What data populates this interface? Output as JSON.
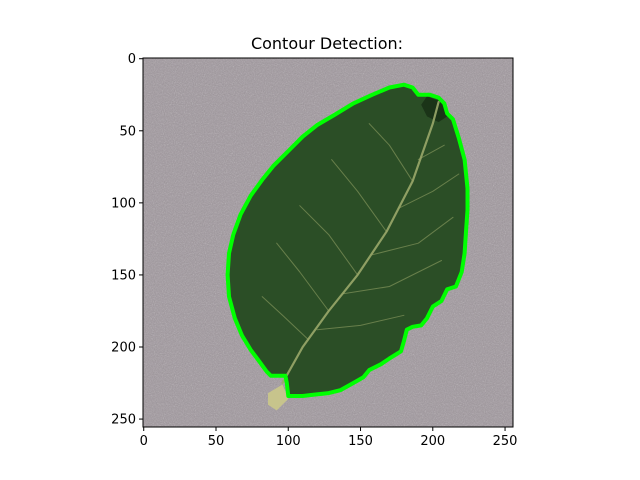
{
  "chart_data": {
    "type": "image",
    "title": "Contour Detection:",
    "image_width": 256,
    "image_height": 256,
    "xlim": [
      -0.5,
      255.5
    ],
    "ylim": [
      255.5,
      -0.5
    ],
    "x_ticks": [
      0,
      50,
      100,
      150,
      200,
      250
    ],
    "y_ticks": [
      0,
      50,
      100,
      150,
      200,
      250
    ],
    "colors": {
      "background": "#a59ea3",
      "leaf": "#2b4e26",
      "leaf_dark": "#1b3418",
      "vein": "#9aa86a",
      "contour": "#00ff00",
      "stem": "#c7c48c"
    },
    "contour": [
      [
        180,
        18
      ],
      [
        186,
        20
      ],
      [
        190,
        25
      ],
      [
        198,
        25
      ],
      [
        204,
        27
      ],
      [
        208,
        31
      ],
      [
        210,
        38
      ],
      [
        214,
        42
      ],
      [
        218,
        55
      ],
      [
        222,
        70
      ],
      [
        224,
        90
      ],
      [
        224,
        105
      ],
      [
        223,
        120
      ],
      [
        222,
        135
      ],
      [
        220,
        148
      ],
      [
        216,
        158
      ],
      [
        210,
        160
      ],
      [
        206,
        168
      ],
      [
        200,
        172
      ],
      [
        196,
        180
      ],
      [
        192,
        185
      ],
      [
        186,
        186
      ],
      [
        182,
        188
      ],
      [
        180,
        196
      ],
      [
        178,
        203
      ],
      [
        170,
        208
      ],
      [
        164,
        212
      ],
      [
        156,
        216
      ],
      [
        152,
        221
      ],
      [
        145,
        225
      ],
      [
        136,
        230
      ],
      [
        128,
        232
      ],
      [
        118,
        233
      ],
      [
        110,
        234
      ],
      [
        100,
        234
      ],
      [
        99,
        225
      ],
      [
        98,
        220
      ],
      [
        88,
        220
      ],
      [
        85,
        217
      ],
      [
        80,
        210
      ],
      [
        74,
        202
      ],
      [
        68,
        192
      ],
      [
        63,
        180
      ],
      [
        59,
        165
      ],
      [
        58,
        150
      ],
      [
        59,
        135
      ],
      [
        62,
        122
      ],
      [
        67,
        108
      ],
      [
        74,
        95
      ],
      [
        82,
        84
      ],
      [
        90,
        74
      ],
      [
        100,
        64
      ],
      [
        110,
        54
      ],
      [
        120,
        46
      ],
      [
        132,
        39
      ],
      [
        145,
        31
      ],
      [
        158,
        25
      ],
      [
        170,
        20
      ],
      [
        180,
        18
      ]
    ],
    "veins": [
      [
        [
          96,
          225
        ],
        [
          110,
          200
        ],
        [
          128,
          175
        ],
        [
          148,
          150
        ],
        [
          168,
          120
        ],
        [
          186,
          85
        ],
        [
          200,
          45
        ],
        [
          204,
          30
        ]
      ],
      [
        [
          114,
          195
        ],
        [
          96,
          178
        ],
        [
          82,
          165
        ]
      ],
      [
        [
          128,
          175
        ],
        [
          108,
          148
        ],
        [
          92,
          128
        ]
      ],
      [
        [
          148,
          150
        ],
        [
          128,
          122
        ],
        [
          108,
          102
        ]
      ],
      [
        [
          168,
          120
        ],
        [
          148,
          92
        ],
        [
          130,
          70
        ]
      ],
      [
        [
          186,
          85
        ],
        [
          170,
          60
        ],
        [
          156,
          45
        ]
      ],
      [
        [
          120,
          188
        ],
        [
          150,
          185
        ],
        [
          180,
          178
        ]
      ],
      [
        [
          138,
          163
        ],
        [
          170,
          158
        ],
        [
          206,
          140
        ]
      ],
      [
        [
          158,
          136
        ],
        [
          190,
          128
        ],
        [
          214,
          110
        ]
      ],
      [
        [
          176,
          104
        ],
        [
          200,
          92
        ],
        [
          218,
          80
        ]
      ],
      [
        [
          190,
          70
        ],
        [
          208,
          60
        ]
      ]
    ]
  }
}
